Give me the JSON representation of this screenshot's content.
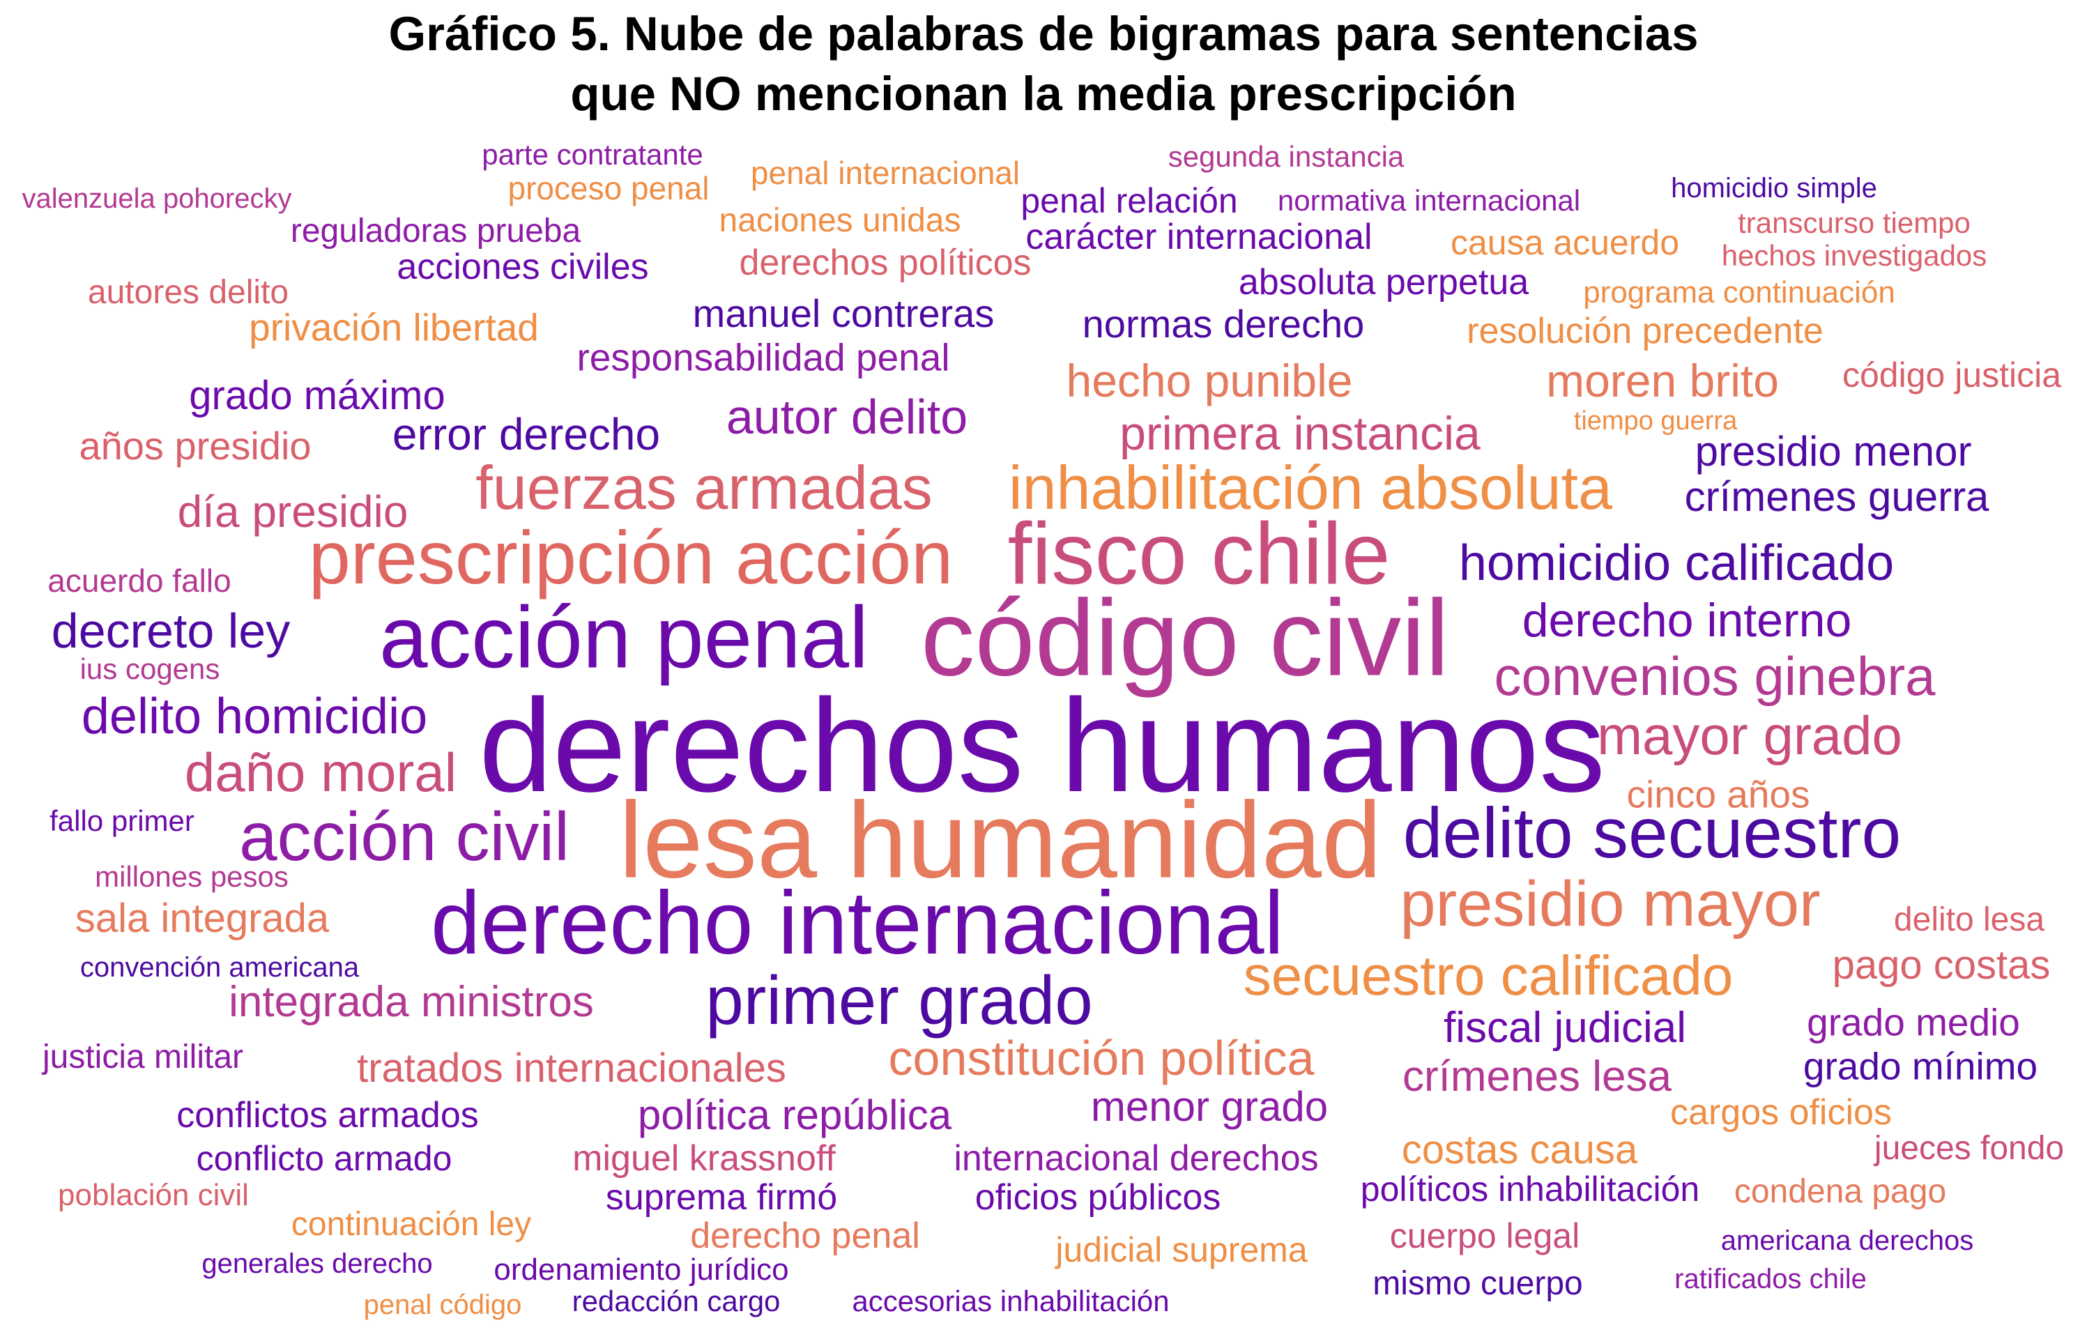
{
  "title_line1": "Gráfico 5. Nube de palabras de bigramas para sentencias",
  "title_line2": "que NO mencionan la media prescripción",
  "palette": {
    "dark_purple": "#4d0aa1",
    "purple": "#6a0aab",
    "violet": "#8d1ca6",
    "magenta": "#b23a92",
    "pink": "#c94d7c",
    "rose": "#d9616b",
    "salmon": "#e57a5c",
    "orange": "#ef8e45"
  },
  "words": [
    {
      "text": "derechos humanos",
      "color": "#6a0aab"
    },
    {
      "text": "lesa humanidad",
      "color": "#e57a5c"
    },
    {
      "text": "código civil",
      "color": "#b23a92"
    },
    {
      "text": "acción penal",
      "color": "#6a0aab"
    },
    {
      "text": "fisco chile",
      "color": "#c94d7c"
    },
    {
      "text": "prescripción acción",
      "color": "#e0675f"
    },
    {
      "text": "derecho internacional",
      "color": "#6a0aab"
    },
    {
      "text": "delito secuestro",
      "color": "#4d0aa1"
    },
    {
      "text": "acción civil",
      "color": "#8d1ca6"
    },
    {
      "text": "primer grado",
      "color": "#4d0aa1"
    },
    {
      "text": "presidio mayor",
      "color": "#e57a5c"
    },
    {
      "text": "inhabilitación absoluta",
      "color": "#ef8e45"
    },
    {
      "text": "fuerzas armadas",
      "color": "#d9616b"
    },
    {
      "text": "convenios ginebra",
      "color": "#b23a92"
    },
    {
      "text": "mayor grado",
      "color": "#c94d7c"
    },
    {
      "text": "secuestro calificado",
      "color": "#ef8e45"
    },
    {
      "text": "daño moral",
      "color": "#c94d7c"
    },
    {
      "text": "homicidio calificado",
      "color": "#4d0aa1"
    },
    {
      "text": "derecho interno",
      "color": "#6a0aab"
    },
    {
      "text": "delito homicidio",
      "color": "#6a0aab"
    },
    {
      "text": "decreto ley",
      "color": "#4d0aa1"
    },
    {
      "text": "constitución política",
      "color": "#e57a5c"
    },
    {
      "text": "autor delito",
      "color": "#8d1ca6"
    },
    {
      "text": "primera instancia",
      "color": "#c94d7c"
    },
    {
      "text": "hecho punible",
      "color": "#e57a5c"
    },
    {
      "text": "moren brito",
      "color": "#e57a5c"
    },
    {
      "text": "error derecho",
      "color": "#4d0aa1"
    },
    {
      "text": "día presidio",
      "color": "#c94d7c"
    },
    {
      "text": "presidio menor",
      "color": "#4d0aa1"
    },
    {
      "text": "crímenes guerra",
      "color": "#4d0aa1"
    },
    {
      "text": "grado máximo",
      "color": "#6a0aab"
    },
    {
      "text": "años presidio",
      "color": "#d9616b"
    },
    {
      "text": "integrada ministros",
      "color": "#b23a92"
    },
    {
      "text": "fiscal judicial",
      "color": "#6a0aab"
    },
    {
      "text": "crímenes lesa",
      "color": "#b23a92"
    },
    {
      "text": "menor grado",
      "color": "#8d1ca6"
    },
    {
      "text": "política república",
      "color": "#8d1ca6"
    },
    {
      "text": "tratados internacionales",
      "color": "#d9616b"
    },
    {
      "text": "sala integrada",
      "color": "#e57a5c"
    },
    {
      "text": "costas causa",
      "color": "#ef8e45"
    },
    {
      "text": "pago costas",
      "color": "#d9616b"
    },
    {
      "text": "grado medio",
      "color": "#8d1ca6"
    },
    {
      "text": "grado mínimo",
      "color": "#4d0aa1"
    },
    {
      "text": "cinco años",
      "color": "#e57a5c"
    },
    {
      "text": "manuel contreras",
      "color": "#4d0aa1"
    },
    {
      "text": "normas derecho",
      "color": "#4d0aa1"
    },
    {
      "text": "responsabilidad penal",
      "color": "#8d1ca6"
    },
    {
      "text": "privación libertad",
      "color": "#ef8e45"
    },
    {
      "text": "absoluta perpetua",
      "color": "#6a0aab"
    },
    {
      "text": "resolución precedente",
      "color": "#ef8e45"
    },
    {
      "text": "código justicia",
      "color": "#d9616b"
    },
    {
      "text": "acciones civiles",
      "color": "#6a0aab"
    },
    {
      "text": "derechos políticos",
      "color": "#d9616b"
    },
    {
      "text": "carácter internacional",
      "color": "#6a0aab"
    },
    {
      "text": "penal relación",
      "color": "#6a0aab"
    },
    {
      "text": "causa acuerdo",
      "color": "#ef8e45"
    },
    {
      "text": "autores delito",
      "color": "#d9616b"
    },
    {
      "text": "reguladoras prueba",
      "color": "#8d1ca6"
    },
    {
      "text": "naciones unidas",
      "color": "#ef8e45"
    },
    {
      "text": "proceso penal",
      "color": "#ef8e45"
    },
    {
      "text": "penal internacional",
      "color": "#ef8e45"
    },
    {
      "text": "parte contratante",
      "color": "#8d1ca6"
    },
    {
      "text": "segunda instancia",
      "color": "#b23a92"
    },
    {
      "text": "valenzuela pohorecky",
      "color": "#b23a92"
    },
    {
      "text": "normativa internacional",
      "color": "#8d1ca6"
    },
    {
      "text": "homicidio simple",
      "color": "#4d0aa1"
    },
    {
      "text": "transcurso tiempo",
      "color": "#d9616b"
    },
    {
      "text": "hechos investigados",
      "color": "#d9616b"
    },
    {
      "text": "programa continuación",
      "color": "#ef8e45"
    },
    {
      "text": "tiempo guerra",
      "color": "#ef8e45"
    },
    {
      "text": "acuerdo fallo",
      "color": "#b23a92"
    },
    {
      "text": "ius cogens",
      "color": "#b23a92"
    },
    {
      "text": "fallo primer",
      "color": "#6a0aab"
    },
    {
      "text": "millones pesos",
      "color": "#b23a92"
    },
    {
      "text": "convención americana",
      "color": "#4d0aa1"
    },
    {
      "text": "justicia militar",
      "color": "#8d1ca6"
    },
    {
      "text": "delito lesa",
      "color": "#d9616b"
    },
    {
      "text": "conflictos armados",
      "color": "#6a0aab"
    },
    {
      "text": "conflicto armado",
      "color": "#6a0aab"
    },
    {
      "text": "población civil",
      "color": "#d9616b"
    },
    {
      "text": "miguel krassnoff",
      "color": "#c94d7c"
    },
    {
      "text": "internacional derechos",
      "color": "#8d1ca6"
    },
    {
      "text": "cargos oficios",
      "color": "#ef8e45"
    },
    {
      "text": "jueces fondo",
      "color": "#c94d7c"
    },
    {
      "text": "suprema firmó",
      "color": "#6a0aab"
    },
    {
      "text": "oficios públicos",
      "color": "#6a0aab"
    },
    {
      "text": "políticos inhabilitación",
      "color": "#6a0aab"
    },
    {
      "text": "condena pago",
      "color": "#e57a5c"
    },
    {
      "text": "continuación ley",
      "color": "#ef8e45"
    },
    {
      "text": "derecho penal",
      "color": "#e57a5c"
    },
    {
      "text": "cuerpo legal",
      "color": "#c94d7c"
    },
    {
      "text": "americana derechos",
      "color": "#6a0aab"
    },
    {
      "text": "generales derecho",
      "color": "#6a0aab"
    },
    {
      "text": "ordenamiento jurídico",
      "color": "#6a0aab"
    },
    {
      "text": "judicial suprema",
      "color": "#ef8e45"
    },
    {
      "text": "ratificados chile",
      "color": "#8d1ca6"
    },
    {
      "text": "penal código",
      "color": "#ef8e45"
    },
    {
      "text": "redacción cargo",
      "color": "#4d0aa1"
    },
    {
      "text": "accesorias inhabilitación",
      "color": "#6a0aab"
    },
    {
      "text": "mismo cuerpo",
      "color": "#4d0aa1"
    }
  ]
}
